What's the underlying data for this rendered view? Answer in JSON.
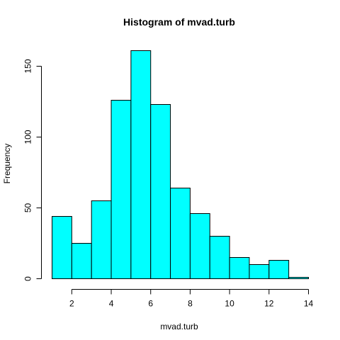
{
  "chart_data": {
    "type": "bar",
    "title": "Histogram of mvad.turb",
    "xlabel": "mvad.turb",
    "ylabel": "Frequency",
    "bin_edges": [
      1,
      2,
      3,
      4,
      5,
      6,
      7,
      8,
      9,
      10,
      11,
      12,
      13,
      14
    ],
    "values": [
      44,
      25,
      55,
      126,
      161,
      123,
      64,
      46,
      30,
      15,
      10,
      13,
      1
    ],
    "bar_color": "#00FFFF",
    "xlim": [
      1,
      14
    ],
    "ylim": [
      0,
      161
    ],
    "x_ticks": [
      "2",
      "4",
      "6",
      "8",
      "10",
      "12",
      "14"
    ],
    "y_ticks": [
      "0",
      "50",
      "100",
      "150"
    ]
  }
}
